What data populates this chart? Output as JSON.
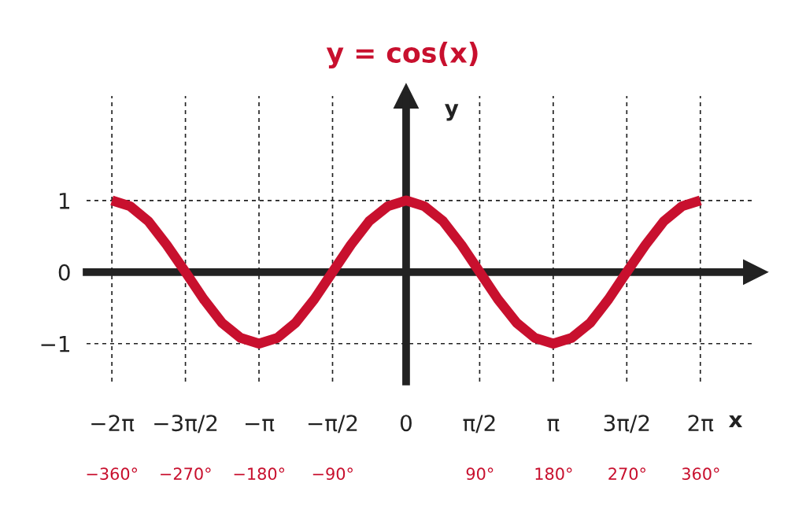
{
  "chart_data": {
    "type": "line",
    "title": "y = cos(x)",
    "xlabel": "x",
    "ylabel": "y",
    "x": [
      -6.28,
      -5.89,
      -5.5,
      -5.11,
      -4.71,
      -4.32,
      -3.93,
      -3.53,
      -3.14,
      -2.75,
      -2.36,
      -1.96,
      -1.57,
      -1.18,
      -0.79,
      -0.39,
      0,
      0.39,
      0.79,
      1.18,
      1.57,
      1.96,
      2.36,
      2.75,
      3.14,
      3.53,
      3.93,
      4.32,
      4.71,
      5.11,
      5.5,
      5.89,
      6.28
    ],
    "series": [
      {
        "color": "#c8102e",
        "values": [
          1,
          0.92,
          0.71,
          0.38,
          0,
          -0.38,
          -0.71,
          -0.92,
          -1,
          -0.92,
          -0.71,
          -0.38,
          0,
          0.38,
          0.71,
          0.92,
          1,
          0.92,
          0.71,
          0.38,
          0,
          -0.38,
          -0.71,
          -0.92,
          -1,
          -0.92,
          -0.71,
          -0.38,
          0,
          0.38,
          0.71,
          0.92,
          1
        ]
      }
    ],
    "xlim": [
      -6.82,
      7.46
    ],
    "ylim": [
      -1.53,
      2.46
    ],
    "xticks": [
      {
        "value": -6.28,
        "label": "−2π"
      },
      {
        "value": -4.71,
        "label": "−3π/2"
      },
      {
        "value": -3.14,
        "label": "−π"
      },
      {
        "value": -1.57,
        "label": "−π/2"
      },
      {
        "value": 0,
        "label": "0"
      },
      {
        "value": 1.57,
        "label": "π/2"
      },
      {
        "value": 3.14,
        "label": "π"
      },
      {
        "value": 4.71,
        "label": "3π/2"
      },
      {
        "value": 6.28,
        "label": "2π"
      }
    ],
    "x2lim": [
      -391,
      427
    ],
    "x2ticks": [
      {
        "value": -360,
        "label": "−360°"
      },
      {
        "value": -270,
        "label": "−270°"
      },
      {
        "value": -180,
        "label": "−180°"
      },
      {
        "value": -90,
        "label": "−90°"
      },
      {
        "value": 90,
        "label": "90°"
      },
      {
        "value": 180,
        "label": "180°"
      },
      {
        "value": 270,
        "label": "270°"
      },
      {
        "value": 360,
        "label": "360°"
      }
    ],
    "yticks": [
      {
        "value": -1,
        "label": "−1"
      },
      0,
      1
    ],
    "grid": true,
    "line_style": "solid",
    "marker": "none"
  }
}
